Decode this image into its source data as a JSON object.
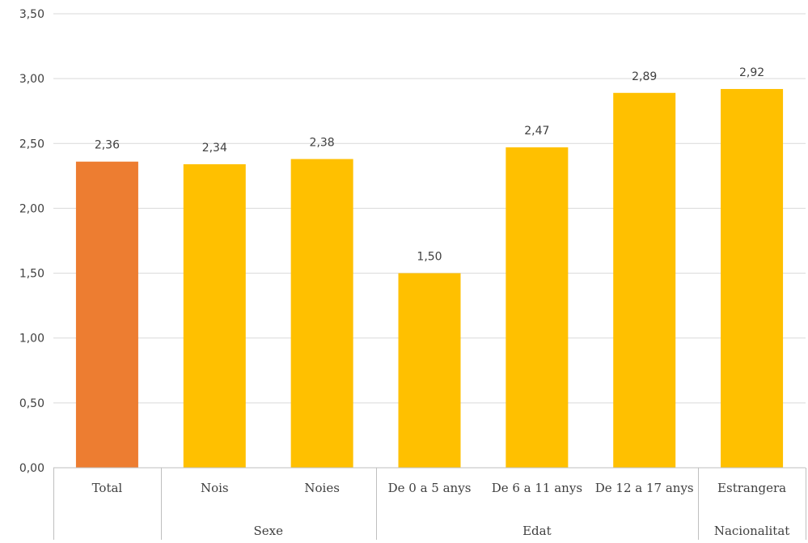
{
  "chart_data": {
    "type": "bar",
    "categories": [
      "Total",
      "Nois",
      "Noies",
      "De 0 a 5 anys",
      "De 6 a 11 anys",
      "De 12 a 17 anys",
      "Estrangera"
    ],
    "values": [
      2.36,
      2.34,
      2.38,
      1.5,
      2.47,
      2.89,
      2.92
    ],
    "value_labels": [
      "2,36",
      "2,34",
      "2,38",
      "1,50",
      "2,47",
      "2,89",
      "2,92"
    ],
    "groups": [
      {
        "label": "",
        "categories": [
          "Total"
        ]
      },
      {
        "label": "Sexe",
        "categories": [
          "Nois",
          "Noies"
        ]
      },
      {
        "label": "Edat",
        "categories": [
          "De 0 a 5 anys",
          "De 6 a 11 anys",
          "De 12 a 17 anys"
        ]
      },
      {
        "label": "Nacionalitat",
        "categories": [
          "Estrangera"
        ]
      }
    ],
    "ylim": [
      0,
      3.5
    ],
    "yticks": [
      0,
      0.5,
      1.0,
      1.5,
      2.0,
      2.5,
      3.0,
      3.5
    ],
    "ytick_labels": [
      "0,00",
      "0,50",
      "1,00",
      "1,50",
      "2,00",
      "2,50",
      "3,00",
      "3,50"
    ],
    "colors": {
      "highlight": "#ED7D31",
      "default": "#FFC000",
      "grid": "#D9D9D9",
      "text": "#404040"
    },
    "highlight_index": 0,
    "grid": true,
    "title": "",
    "xlabel": "",
    "ylabel": ""
  }
}
